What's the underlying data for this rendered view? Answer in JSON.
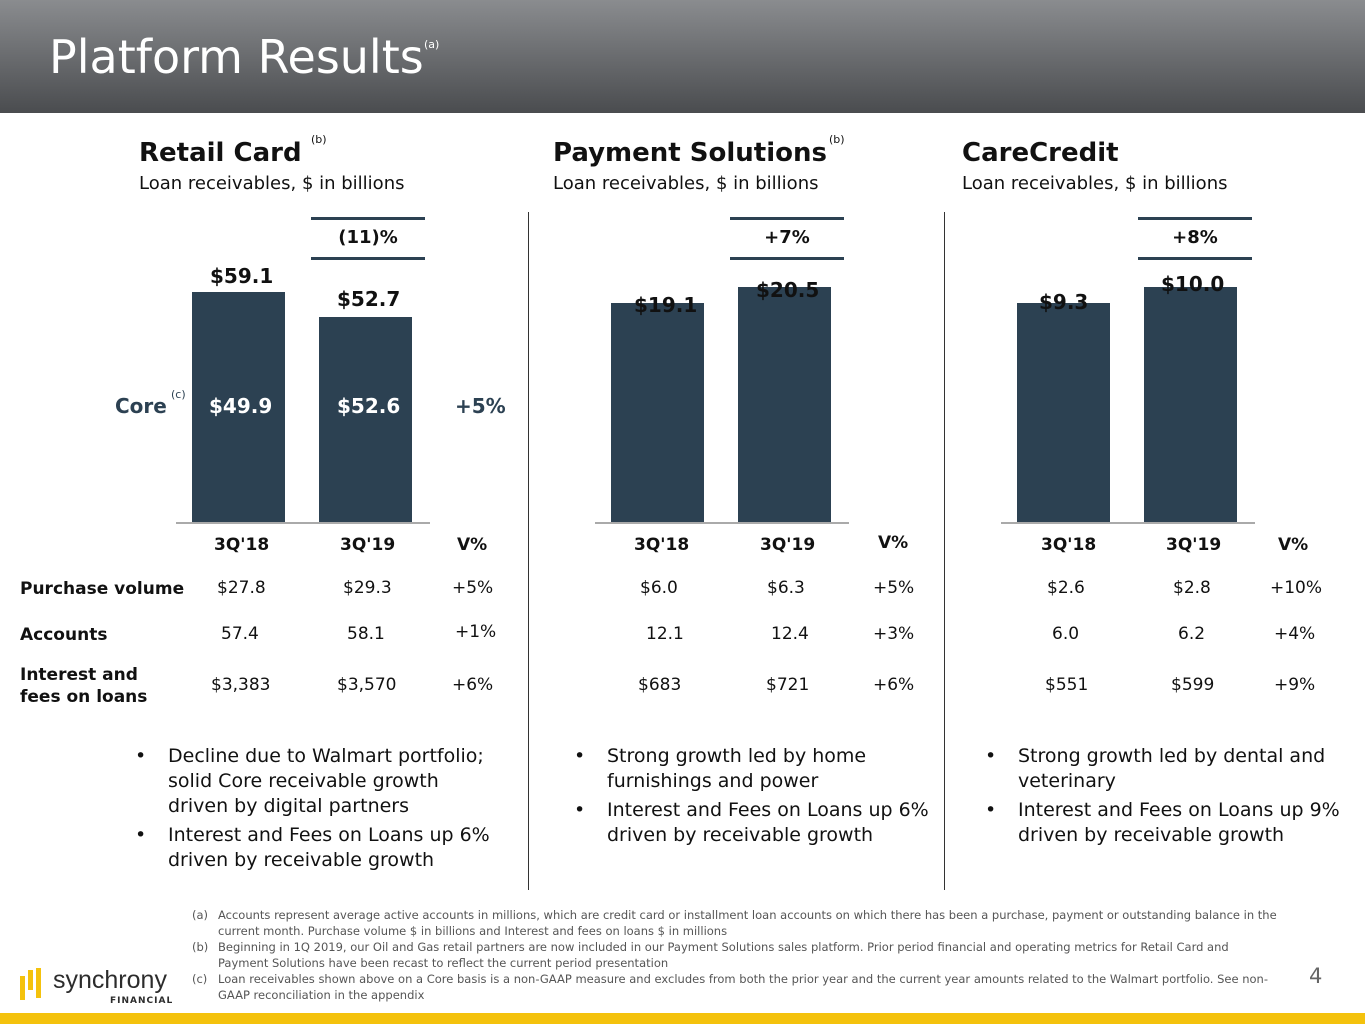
{
  "header": {
    "title": "Platform Results",
    "title_note": "(a)"
  },
  "panels": [
    {
      "title": "Retail Card",
      "title_note": "(b)",
      "subtitle": "Loan receivables, $ in billions",
      "growth": "(11)%",
      "bar_labels": [
        "$59.1",
        "$52.7"
      ],
      "bar_values": [
        59.1,
        52.7
      ],
      "core": {
        "label": "Core",
        "note": "(c)",
        "values": [
          "$49.9",
          "$52.6"
        ],
        "growth": "+5%"
      },
      "columns": [
        "3Q'18",
        "3Q'19",
        "V%"
      ],
      "rows": [
        [
          "$27.8",
          "$29.3",
          "+5%"
        ],
        [
          "57.4",
          "58.1",
          "+1%"
        ],
        [
          "$3,383",
          "$3,570",
          "+6%"
        ]
      ],
      "bullets": [
        [
          "Decline due to Walmart portfolio;",
          "solid Core receivable growth",
          "driven by digital partners"
        ],
        [
          "Interest and Fees on Loans up 6%",
          "driven by receivable growth"
        ]
      ]
    },
    {
      "title": "Payment Solutions",
      "title_note": "(b)",
      "subtitle": "Loan receivables, $ in billions",
      "growth": "+7%",
      "bar_labels": [
        "$19.1",
        "$20.5"
      ],
      "bar_values": [
        19.1,
        20.5
      ],
      "columns": [
        "3Q'18",
        "3Q'19",
        "V%"
      ],
      "rows": [
        [
          "$6.0",
          "$6.3",
          "+5%"
        ],
        [
          "12.1",
          "12.4",
          "+3%"
        ],
        [
          "$683",
          "$721",
          "+6%"
        ]
      ],
      "bullets": [
        [
          "Strong growth led by home",
          "furnishings and power"
        ],
        [
          "Interest and Fees on Loans up 6%",
          "driven by receivable growth"
        ]
      ]
    },
    {
      "title": "CareCredit",
      "subtitle": "Loan receivables, $ in billions",
      "growth": "+8%",
      "bar_labels": [
        "$9.3",
        "$10.0"
      ],
      "bar_values": [
        9.3,
        10.0
      ],
      "columns": [
        "3Q'18",
        "3Q'19",
        "V%"
      ],
      "rows": [
        [
          "$2.6",
          "$2.8",
          "+10%"
        ],
        [
          "6.0",
          "6.2",
          "+4%"
        ],
        [
          "$551",
          "$599",
          "+9%"
        ]
      ],
      "bullets": [
        [
          "Strong growth led by dental and",
          "veterinary"
        ],
        [
          "Interest and Fees on Loans up 9%",
          "driven by receivable growth"
        ]
      ]
    }
  ],
  "row_labels": [
    "Purchase volume",
    "Accounts",
    "Interest and fees on loans"
  ],
  "footnotes": [
    {
      "label": "(a)",
      "text": "Accounts represent average active accounts in millions, which are credit card or installment loan accounts on which there has been a purchase, payment or outstanding balance in the current month. Purchase volume $ in billions and Interest and fees on loans $ in millions"
    },
    {
      "label": "(b)",
      "text": "Beginning in 1Q 2019, our Oil and Gas retail partners are now included in our Payment Solutions sales platform. Prior period financial and operating metrics for Retail Card and Payment Solutions have been recast to reflect the current period presentation"
    },
    {
      "label": "(c)",
      "text": "Loan receivables  shown above on a Core basis is a non-GAAP measure and excludes from both the prior year and the current year amounts related to the Walmart portfolio. See non-GAAP reconciliation in the appendix"
    }
  ],
  "logo": {
    "name": "synchrony",
    "sub": "FINANCIAL"
  },
  "page_number": "4",
  "colors": {
    "bar": "#2c4152",
    "accent": "#f4c20d"
  }
}
